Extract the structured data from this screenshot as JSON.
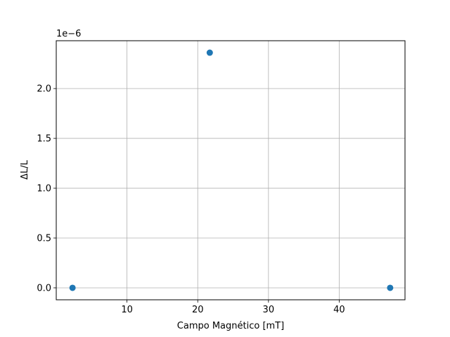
{
  "chart_data": {
    "type": "scatter",
    "title": "",
    "xlabel": "Campo Magnético [mT]",
    "ylabel": "ΔL/L",
    "y_offset_label": "1e−6",
    "xlim": [
      0,
      49.3
    ],
    "ylim": [
      -0.12,
      2.48
    ],
    "x_ticks": [
      10,
      20,
      30,
      40
    ],
    "x_tick_labels": [
      "10",
      "20",
      "30",
      "40"
    ],
    "y_ticks": [
      0.0,
      0.5,
      1.0,
      1.5,
      2.0
    ],
    "y_tick_labels": [
      "0.0",
      "0.5",
      "1.0",
      "1.5",
      "2.0"
    ],
    "grid": true,
    "series": [
      {
        "x": [
          2.3,
          21.7,
          47.2
        ],
        "y": [
          0.0,
          2.36,
          0.0
        ],
        "color": "#1f77b4"
      }
    ]
  }
}
